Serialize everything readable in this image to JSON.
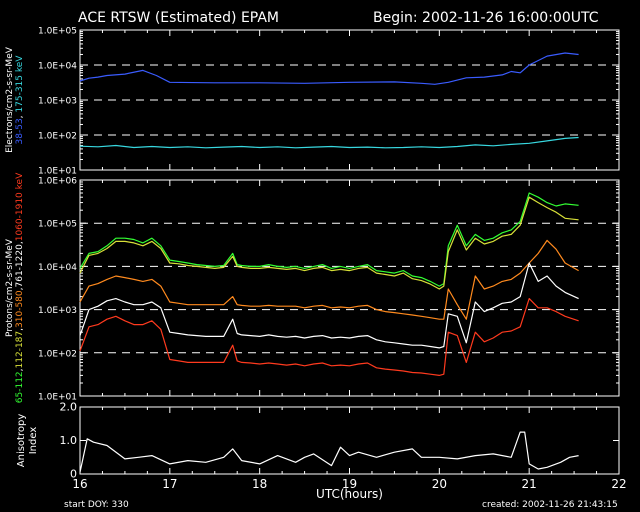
{
  "header": {
    "title": "ACE RTSW (Estimated) EPAM",
    "begin": "Begin: 2002-11-26 16:00:00UTC"
  },
  "footer": {
    "start_doy": "start DOY:  330",
    "created": "created:  2002-11-26 21:43:15"
  },
  "colors": {
    "electron_38_53": "#3a5cff",
    "electron_175_315": "#38d8e0",
    "proton_65_112": "#33ff33",
    "proton_112_187": "#d8e038",
    "proton_310_580": "#ff8a1e",
    "proton_761_1220": "#ffffff",
    "proton_1060_1910": "#ff3a1e",
    "anisotropy": "#ffffff"
  },
  "chart_data": [
    {
      "type": "line",
      "name": "electrons",
      "ylabel_parts": [
        {
          "text": "Electrons/cm2-s-sr-MeV",
          "color": "#ffffff"
        },
        {
          "text": "38-53",
          "color": "#3a5cff"
        },
        {
          "text": ", ",
          "color": "#ffffff"
        },
        {
          "text": "175-315",
          "color": "#38d8e0"
        },
        {
          "text": " keV",
          "color": "#38d8e0"
        }
      ],
      "yscale": "log",
      "ylim": [
        10,
        100000
      ],
      "yticks": [
        "1.0E+01",
        "1.0E+02",
        "1.0E+03",
        "1.0E+04",
        "1.0E+05"
      ],
      "dashed_lines": [
        100,
        1000,
        10000
      ],
      "xlim": [
        16,
        22
      ],
      "series": [
        {
          "color": "#3a5cff",
          "x": [
            16.0,
            16.1,
            16.2,
            16.3,
            16.5,
            16.7,
            16.85,
            17.0,
            17.5,
            18.0,
            18.5,
            19.0,
            19.5,
            19.8,
            19.95,
            20.1,
            20.3,
            20.5,
            20.7,
            20.8,
            20.9,
            21.0,
            21.2,
            21.4,
            21.55
          ],
          "y": [
            3500,
            4200,
            4500,
            5000,
            5500,
            7000,
            5000,
            3200,
            3100,
            3100,
            3000,
            3200,
            3300,
            3000,
            2800,
            3200,
            4300,
            4500,
            5200,
            6500,
            6000,
            10000,
            18000,
            22000,
            20000
          ]
        },
        {
          "color": "#38d8e0",
          "x": [
            16.0,
            16.2,
            16.4,
            16.6,
            16.8,
            17.0,
            17.2,
            17.4,
            17.6,
            17.8,
            18.0,
            18.2,
            18.4,
            18.6,
            18.8,
            19.0,
            19.2,
            19.4,
            19.6,
            19.8,
            20.0,
            20.2,
            20.4,
            20.6,
            20.8,
            21.0,
            21.2,
            21.4,
            21.55
          ],
          "y": [
            48,
            46,
            50,
            44,
            47,
            44,
            46,
            43,
            45,
            47,
            44,
            46,
            43,
            45,
            47,
            44,
            45,
            43,
            44,
            46,
            44,
            47,
            52,
            49,
            54,
            58,
            68,
            80,
            85
          ]
        }
      ]
    },
    {
      "type": "line",
      "name": "protons",
      "ylabel_parts": [
        {
          "text": "Protons/cm2-s-sr-MeV",
          "color": "#ffffff"
        },
        {
          "text": "65-112",
          "color": "#33ff33"
        },
        {
          "text": ",",
          "color": "#ffffff"
        },
        {
          "text": "112-187",
          "color": "#d8e038"
        },
        {
          "text": ",",
          "color": "#ffffff"
        },
        {
          "text": "310-580",
          "color": "#ff8a1e"
        },
        {
          "text": ",",
          "color": "#ffffff"
        },
        {
          "text": "761-1220",
          "color": "#ffffff"
        },
        {
          "text": ",",
          "color": "#ffffff"
        },
        {
          "text": "1060-1910",
          "color": "#ff3a1e"
        },
        {
          "text": " keV",
          "color": "#ff3a1e"
        }
      ],
      "yscale": "log",
      "ylim": [
        10,
        1000000
      ],
      "yticks": [
        "1.0E+01",
        "1.0E+02",
        "1.0E+03",
        "1.0E+04",
        "1.0E+05",
        "1.0E+06"
      ],
      "dashed_lines": [
        100,
        1000,
        10000,
        100000
      ],
      "xlim": [
        16,
        22
      ],
      "x": [
        16.0,
        16.1,
        16.2,
        16.3,
        16.4,
        16.5,
        16.6,
        16.7,
        16.8,
        16.9,
        17.0,
        17.1,
        17.2,
        17.3,
        17.4,
        17.5,
        17.6,
        17.7,
        17.75,
        17.8,
        17.9,
        18.0,
        18.1,
        18.2,
        18.3,
        18.4,
        18.5,
        18.6,
        18.7,
        18.8,
        18.9,
        19.0,
        19.1,
        19.2,
        19.3,
        19.4,
        19.5,
        19.6,
        19.7,
        19.8,
        19.9,
        20.0,
        20.05,
        20.1,
        20.2,
        20.3,
        20.4,
        20.5,
        20.6,
        20.7,
        20.8,
        20.9,
        21.0,
        21.1,
        21.2,
        21.3,
        21.4,
        21.55
      ],
      "series": [
        {
          "color": "#33ff33",
          "y": [
            9000,
            20000,
            22000,
            30000,
            45000,
            45000,
            42000,
            35000,
            45000,
            30000,
            14000,
            13000,
            12000,
            11000,
            10500,
            10000,
            10500,
            20000,
            11000,
            10500,
            10000,
            10000,
            11000,
            10000,
            9500,
            10000,
            9000,
            10000,
            11000,
            9000,
            10000,
            9000,
            10000,
            11000,
            8000,
            7500,
            7000,
            8000,
            6000,
            5500,
            4500,
            3500,
            4000,
            30000,
            90000,
            30000,
            55000,
            40000,
            45000,
            60000,
            70000,
            110000,
            500000,
            400000,
            300000,
            250000,
            280000,
            260000
          ]
        },
        {
          "color": "#d8e038",
          "y": [
            7000,
            18000,
            20000,
            26000,
            38000,
            38000,
            35000,
            30000,
            38000,
            26000,
            12000,
            11500,
            10500,
            10000,
            9500,
            9000,
            9500,
            17000,
            10000,
            9500,
            9000,
            9000,
            9500,
            9000,
            8500,
            9000,
            8000,
            9000,
            9500,
            8000,
            8500,
            8000,
            9000,
            9500,
            7000,
            6500,
            6000,
            7000,
            5200,
            4700,
            3900,
            3000,
            3500,
            22000,
            70000,
            24000,
            45000,
            33000,
            38000,
            50000,
            55000,
            90000,
            400000,
            300000,
            230000,
            180000,
            130000,
            120000
          ]
        },
        {
          "color": "#ff8a1e",
          "y": [
            1500,
            3500,
            4000,
            5000,
            6000,
            5500,
            5000,
            4500,
            5000,
            3500,
            1500,
            1400,
            1300,
            1300,
            1300,
            1300,
            1300,
            2000,
            1300,
            1250,
            1200,
            1200,
            1250,
            1200,
            1200,
            1200,
            1100,
            1200,
            1250,
            1100,
            1150,
            1100,
            1200,
            1250,
            1000,
            900,
            850,
            800,
            750,
            700,
            650,
            600,
            600,
            3000,
            1300,
            600,
            6000,
            3000,
            3500,
            4500,
            5000,
            7000,
            12000,
            20000,
            40000,
            25000,
            12000,
            8000
          ]
        },
        {
          "color": "#ffffff",
          "y": [
            250,
            1000,
            1200,
            1600,
            1800,
            1500,
            1300,
            1300,
            1500,
            1100,
            300,
            280,
            260,
            250,
            240,
            240,
            240,
            600,
            280,
            260,
            250,
            240,
            260,
            240,
            230,
            240,
            220,
            240,
            250,
            220,
            230,
            220,
            240,
            250,
            200,
            180,
            170,
            160,
            150,
            150,
            140,
            130,
            140,
            800,
            700,
            170,
            1500,
            900,
            1100,
            1400,
            1500,
            2000,
            12000,
            4500,
            6000,
            3500,
            2500,
            1800
          ]
        },
        {
          "color": "#ff3a1e",
          "y": [
            110,
            400,
            450,
            600,
            700,
            550,
            450,
            450,
            550,
            350,
            70,
            65,
            60,
            60,
            60,
            60,
            60,
            150,
            65,
            60,
            58,
            55,
            58,
            55,
            52,
            55,
            50,
            55,
            58,
            50,
            52,
            50,
            55,
            58,
            45,
            42,
            40,
            38,
            35,
            34,
            32,
            30,
            32,
            300,
            250,
            60,
            300,
            180,
            220,
            300,
            320,
            400,
            1800,
            1100,
            1100,
            900,
            700,
            550
          ]
        }
      ]
    },
    {
      "type": "line",
      "name": "anisotropy",
      "ylabel_lines": [
        "Anisotropy",
        "Index"
      ],
      "ylim": [
        0,
        2
      ],
      "yticks": [
        "0",
        "1.0",
        "2.0"
      ],
      "xlim": [
        16,
        22
      ],
      "xticks": [
        "16",
        "17",
        "18",
        "19",
        "20",
        "21",
        "22"
      ],
      "xlabel": "UTC(hours)",
      "series": [
        {
          "color": "#ffffff",
          "x": [
            16.0,
            16.08,
            16.15,
            16.3,
            16.5,
            16.65,
            16.8,
            17.0,
            17.2,
            17.4,
            17.6,
            17.7,
            17.8,
            18.0,
            18.2,
            18.4,
            18.5,
            18.6,
            18.8,
            18.9,
            19.0,
            19.1,
            19.3,
            19.5,
            19.7,
            19.8,
            20.0,
            20.2,
            20.4,
            20.6,
            20.8,
            20.9,
            20.95,
            21.0,
            21.1,
            21.2,
            21.35,
            21.45,
            21.55
          ],
          "y": [
            0.05,
            1.05,
            0.95,
            0.85,
            0.45,
            0.5,
            0.55,
            0.3,
            0.4,
            0.35,
            0.5,
            0.75,
            0.4,
            0.3,
            0.55,
            0.35,
            0.5,
            0.6,
            0.25,
            0.8,
            0.55,
            0.65,
            0.5,
            0.65,
            0.75,
            0.5,
            0.5,
            0.45,
            0.55,
            0.6,
            0.5,
            1.25,
            1.25,
            0.3,
            0.15,
            0.2,
            0.35,
            0.5,
            0.55
          ]
        }
      ]
    }
  ]
}
